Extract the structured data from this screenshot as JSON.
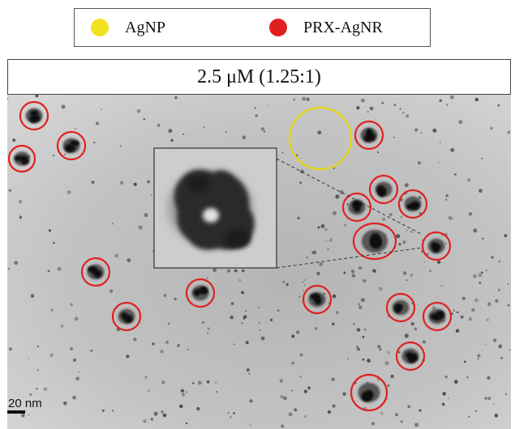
{
  "legend": {
    "items": [
      {
        "label": "AgNP",
        "color": "#f2e21f"
      },
      {
        "label": "PRX-AgNR",
        "color": "#e02020"
      }
    ]
  },
  "concentration_label": "2.5 μM (1.25:1)",
  "scale_bar": {
    "label": "20 nm"
  },
  "colors": {
    "agnp_circle": "#e6d41c",
    "prx_agnr_circle": "#e02020",
    "background": "#bdbdbd"
  }
}
